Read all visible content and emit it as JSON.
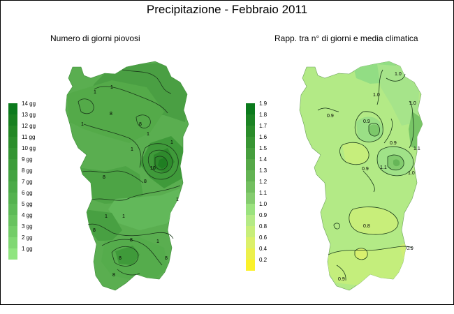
{
  "title": "Precipitazione - Febbraio 2011",
  "maps": [
    {
      "subtitle": "Numero di giorni piovosi",
      "legend": [
        {
          "label": "14 gg",
          "color": "#0b7a1c"
        },
        {
          "label": "13 gg",
          "color": "#17801f"
        },
        {
          "label": "12 gg",
          "color": "#228724"
        },
        {
          "label": "11 gg",
          "color": "#2b8e2b"
        },
        {
          "label": "10 gg",
          "color": "#339532"
        },
        {
          "label": "9 gg",
          "color": "#3b9c39"
        },
        {
          "label": "8 gg",
          "color": "#43a341"
        },
        {
          "label": "7 gg",
          "color": "#4baa48"
        },
        {
          "label": "6 gg",
          "color": "#54b24f"
        },
        {
          "label": "5 gg",
          "color": "#5dba57"
        },
        {
          "label": "4 gg",
          "color": "#68c35f"
        },
        {
          "label": "3 gg",
          "color": "#73cd68"
        },
        {
          "label": "2 gg",
          "color": "#80d873"
        },
        {
          "label": "1 gg",
          "color": "#90e580"
        }
      ],
      "contour_labels": [
        "1",
        "1",
        "1",
        "1",
        "1",
        "1",
        "1",
        "1",
        "1",
        "1",
        "10",
        "8",
        "8",
        "8",
        "8",
        "8",
        "8",
        "8",
        "8",
        "8"
      ]
    },
    {
      "subtitle": "Rapp. tra n° di giorni e media climatica",
      "legend": [
        {
          "label": "1.9",
          "color": "#0b7a1c"
        },
        {
          "label": "1.8",
          "color": "#1b8323"
        },
        {
          "label": "1.7",
          "color": "#2a8c2a"
        },
        {
          "label": "1.6",
          "color": "#389533"
        },
        {
          "label": "1.5",
          "color": "#469e3d"
        },
        {
          "label": "1.4",
          "color": "#55a847"
        },
        {
          "label": "1.3",
          "color": "#63b353"
        },
        {
          "label": "1.2",
          "color": "#73bf60"
        },
        {
          "label": "1.1",
          "color": "#85cc6f"
        },
        {
          "label": "1.0",
          "color": "#9be27f"
        },
        {
          "label": "0.9",
          "color": "#b5ea86"
        },
        {
          "label": "0.8",
          "color": "#c8ee7a"
        },
        {
          "label": "0.6",
          "color": "#dcf06a"
        },
        {
          "label": "0.4",
          "color": "#ecf04c"
        },
        {
          "label": "0.2",
          "color": "#fbf12a"
        }
      ],
      "contour_labels": [
        "1.0",
        "1.0",
        "1.0",
        "1.0",
        "1.1",
        "0.9",
        "1.1",
        "0.9",
        "0.9",
        "0.9",
        "0.9",
        "0.8",
        "0.9"
      ]
    }
  ]
}
